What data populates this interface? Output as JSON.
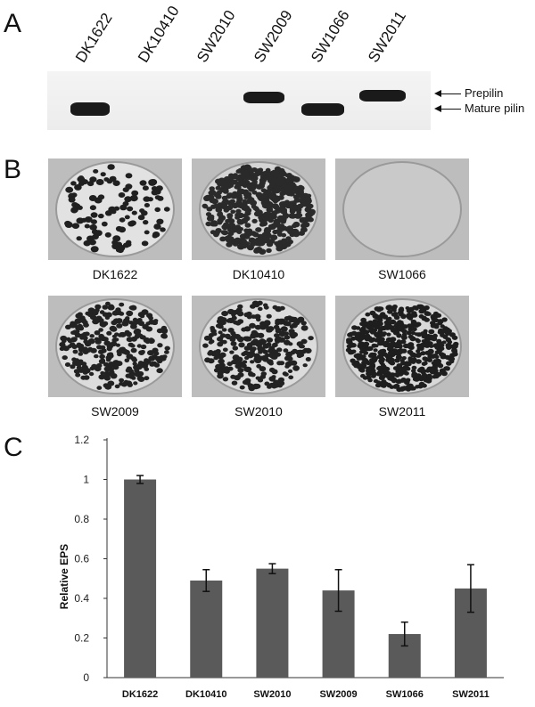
{
  "panels": {
    "a": "A",
    "b": "B",
    "c": "C"
  },
  "blot": {
    "lanes": [
      "DK1622",
      "DK10410",
      "SW2010",
      "SW2009",
      "SW1066",
      "SW2011"
    ],
    "labels": {
      "prepilin": "Prepilin",
      "mature": "Mature pilin"
    }
  },
  "colonies": [
    {
      "label": "DK1622",
      "pattern": "sparse"
    },
    {
      "label": "DK10410",
      "pattern": "dense"
    },
    {
      "label": "SW1066",
      "pattern": "smooth"
    },
    {
      "label": "SW2009",
      "pattern": "medium"
    },
    {
      "label": "SW2010",
      "pattern": "medium"
    },
    {
      "label": "SW2011",
      "pattern": "swirl"
    }
  ],
  "chart_data": {
    "type": "bar",
    "categories": [
      "DK1622",
      "DK10410",
      "SW2010",
      "SW2009",
      "SW1066",
      "SW2011"
    ],
    "values": [
      1.0,
      0.49,
      0.55,
      0.44,
      0.22,
      0.45
    ],
    "errors": [
      0.02,
      0.055,
      0.025,
      0.105,
      0.06,
      0.12
    ],
    "ylabel": "Relative EPS",
    "ylim": [
      0,
      1.2
    ],
    "yticks": [
      "0",
      "0.2",
      "0.4",
      "0.6",
      "0.8",
      "1",
      "1.2"
    ],
    "bar_color": "#5a5a5a",
    "grid": false
  }
}
